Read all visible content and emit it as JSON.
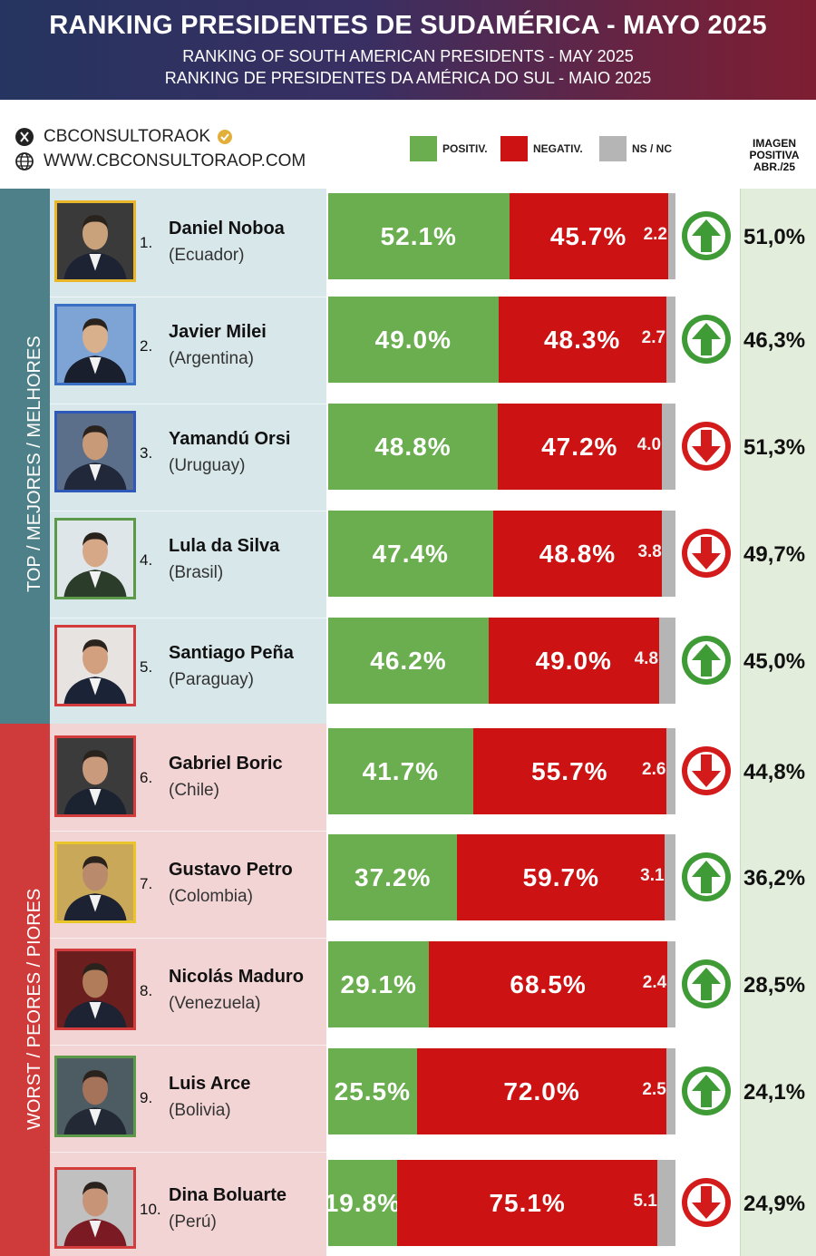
{
  "header": {
    "title": "RANKING PRESIDENTES DE SUDAMÉRICA - MAYO 2025",
    "subtitle_en": "RANKING OF SOUTH AMERICAN PRESIDENTS -  MAY 2025",
    "subtitle_pt": "RANKING DE PRESIDENTES DA AMÉRICA DO SUL - MAIO 2025"
  },
  "social": {
    "handle": "CBCONSULTORAOK",
    "website": "WWW.CBCONSULTORAOP.COM"
  },
  "legend": [
    {
      "label": "POSITIV.",
      "color": "#6aae4f"
    },
    {
      "label": "NEGATIV.",
      "color": "#cc1212"
    },
    {
      "label": "NS / NC",
      "color": "#b5b5b5"
    }
  ],
  "image_column": {
    "line1": "IMAGEN",
    "line2": "POSITIVA",
    "line3": "ABR./25"
  },
  "groups": {
    "top": "TOP / MEJORES / MELHORES",
    "worst": "WORST / PEORES / PIORES"
  },
  "chart_data": {
    "type": "bar",
    "stacked": true,
    "orientation": "horizontal",
    "categories": [
      "Daniel Noboa",
      "Javier Milei",
      "Yamandú Orsi",
      "Lula da Silva",
      "Santiago Peña",
      "Gabriel Boric",
      "Gustavo Petro",
      "Nicolás Maduro",
      "Luis Arce",
      "Dina Boluarte"
    ],
    "series": [
      {
        "name": "POSITIV.",
        "values": [
          52.1,
          49.0,
          48.8,
          47.4,
          46.2,
          41.7,
          37.2,
          29.1,
          25.5,
          19.8
        ]
      },
      {
        "name": "NEGATIV.",
        "values": [
          45.7,
          48.3,
          47.2,
          48.8,
          49.0,
          55.7,
          59.7,
          68.5,
          72.0,
          75.1
        ]
      },
      {
        "name": "NS / NC",
        "values": [
          2.2,
          2.7,
          4.0,
          3.8,
          4.8,
          2.6,
          3.1,
          2.4,
          2.5,
          5.1
        ]
      }
    ],
    "rows": [
      {
        "rank": "1.",
        "name": "Daniel Noboa",
        "country": "(Ecuador)",
        "positive": 52.1,
        "negative": 45.7,
        "nsnc": 2.2,
        "pos_label": "52.1%",
        "neg_label": "45.7%",
        "ns_label": "2.2",
        "trend": "up",
        "april": "51,0%",
        "frame": "#e9b52a",
        "group": "top"
      },
      {
        "rank": "2.",
        "name": "Javier Milei",
        "country": "(Argentina)",
        "positive": 49.0,
        "negative": 48.3,
        "nsnc": 2.7,
        "pos_label": "49.0%",
        "neg_label": "48.3%",
        "ns_label": "2.7",
        "trend": "up",
        "april": "46,3%",
        "frame": "#3b6fc4",
        "group": "top"
      },
      {
        "rank": "3.",
        "name": "Yamandú Orsi",
        "country": "(Uruguay)",
        "positive": 48.8,
        "negative": 47.2,
        "nsnc": 4.0,
        "pos_label": "48.8%",
        "neg_label": "47.2%",
        "ns_label": "4.0",
        "trend": "down",
        "april": "51,3%",
        "frame": "#2f59b8",
        "group": "top"
      },
      {
        "rank": "4.",
        "name": "Lula da Silva",
        "country": "(Brasil)",
        "positive": 47.4,
        "negative": 48.8,
        "nsnc": 3.8,
        "pos_label": "47.4%",
        "neg_label": "48.8%",
        "ns_label": "3.8",
        "trend": "down",
        "april": "49,7%",
        "frame": "#5c9a4a",
        "group": "top"
      },
      {
        "rank": "5.",
        "name": "Santiago Peña",
        "country": "(Paraguay)",
        "positive": 46.2,
        "negative": 49.0,
        "nsnc": 4.8,
        "pos_label": "46.2%",
        "neg_label": "49.0%",
        "ns_label": "4.8",
        "trend": "up",
        "april": "45,0%",
        "frame": "#d23c3c",
        "group": "top"
      },
      {
        "rank": "6.",
        "name": "Gabriel Boric",
        "country": "(Chile)",
        "positive": 41.7,
        "negative": 55.7,
        "nsnc": 2.6,
        "pos_label": "41.7%",
        "neg_label": "55.7%",
        "ns_label": "2.6",
        "trend": "down",
        "april": "44,8%",
        "frame": "#d23c3c",
        "group": "worst"
      },
      {
        "rank": "7.",
        "name": "Gustavo Petro",
        "country": "(Colombia)",
        "positive": 37.2,
        "negative": 59.7,
        "nsnc": 3.1,
        "pos_label": "37.2%",
        "neg_label": "59.7%",
        "ns_label": "3.1",
        "trend": "up",
        "april": "36,2%",
        "frame": "#e9c52a",
        "group": "worst"
      },
      {
        "rank": "8.",
        "name": "Nicolás Maduro",
        "country": "(Venezuela)",
        "positive": 29.1,
        "negative": 68.5,
        "nsnc": 2.4,
        "pos_label": "29.1%",
        "neg_label": "68.5%",
        "ns_label": "2.4",
        "trend": "up",
        "april": "28,5%",
        "frame": "#d23c3c",
        "group": "worst"
      },
      {
        "rank": "9.",
        "name": "Luis Arce",
        "country": "(Bolivia)",
        "positive": 25.5,
        "negative": 72.0,
        "nsnc": 2.5,
        "pos_label": "25.5%",
        "neg_label": "72.0%",
        "ns_label": "2.5",
        "trend": "up",
        "april": "24,1%",
        "frame": "#5c9a4a",
        "group": "worst"
      },
      {
        "rank": "10.",
        "name": "Dina Boluarte",
        "country": "(Perú)",
        "positive": 19.8,
        "negative": 75.1,
        "nsnc": 5.1,
        "pos_label": "19.8%",
        "neg_label": "75.1%",
        "ns_label": "5.1",
        "trend": "down",
        "april": "24,9%",
        "frame": "#d23c3c",
        "group": "worst"
      }
    ],
    "colors": {
      "positive": "#6aae4f",
      "negative": "#cc1212",
      "nsnc": "#b5b5b5",
      "trend_up": "#3f9b35",
      "trend_down": "#d41b1b"
    }
  }
}
